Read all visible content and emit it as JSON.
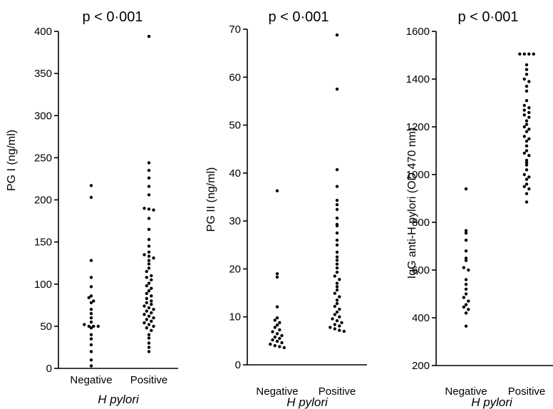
{
  "chart_data": [
    {
      "type": "scatter",
      "title": "p < 0·001",
      "ylabel": "PG I (ng/ml)",
      "xlabel": "H pylori",
      "categories": [
        "Negative",
        "Positive"
      ],
      "ylim": [
        0,
        400
      ],
      "yticks": [
        0,
        50,
        100,
        150,
        200,
        250,
        300,
        350,
        400
      ],
      "series": [
        {
          "category": "Negative",
          "values": [
            217,
            203,
            128,
            108,
            97,
            86,
            84,
            80,
            78,
            70,
            65,
            60,
            55,
            52,
            50,
            50,
            50,
            48,
            40,
            35,
            28,
            20,
            10,
            3
          ]
        },
        {
          "category": "Positive",
          "values": [
            394,
            244,
            235,
            226,
            216,
            206,
            190,
            189,
            188,
            178,
            165,
            153,
            145,
            138,
            135,
            133,
            131,
            128,
            124,
            119,
            115,
            110,
            108,
            105,
            101,
            98,
            95,
            92,
            89,
            86,
            83,
            80,
            78,
            76,
            74,
            72,
            70,
            68,
            66,
            64,
            62,
            60,
            58,
            56,
            54,
            52,
            50,
            48,
            45,
            40,
            36,
            30,
            25,
            20
          ]
        }
      ]
    },
    {
      "type": "scatter",
      "title": "p < 0·001",
      "ylabel": "PG II (ng/ml)",
      "xlabel": "H pylori",
      "categories": [
        "Negative",
        "Positive"
      ],
      "ylim": [
        0,
        70
      ],
      "yticks": [
        0,
        10,
        20,
        30,
        40,
        50,
        60,
        70
      ],
      "series": [
        {
          "category": "Negative",
          "values": [
            36.3,
            19.0,
            18.3,
            12.1,
            9.8,
            9.3,
            8.8,
            8.3,
            7.8,
            7.3,
            6.9,
            6.5,
            6.1,
            5.8,
            5.5,
            5.2,
            4.9,
            4.6,
            4.3,
            4.0,
            3.8,
            3.6
          ]
        },
        {
          "category": "Positive",
          "values": [
            68.8,
            57.5,
            40.7,
            37.2,
            34.3,
            33.4,
            32.4,
            30.6,
            29.3,
            29.0,
            27.5,
            26.0,
            25.0,
            23.5,
            22.5,
            21.8,
            21.0,
            20.2,
            19.3,
            18.5,
            17.8,
            17.0,
            16.3,
            15.6,
            14.9,
            14.2,
            13.5,
            12.8,
            12.2,
            11.6,
            11.0,
            10.5,
            10.0,
            9.6,
            9.2,
            8.8,
            8.4,
            8.1,
            7.8,
            7.5,
            7.2,
            7.0
          ]
        }
      ]
    },
    {
      "type": "scatter",
      "title": "p < 0·001",
      "ylabel": "IgG anti-H pylori (OD 470 nm)",
      "xlabel": "H pylori",
      "categories": [
        "Negative",
        "Positive"
      ],
      "ylim": [
        200,
        1600
      ],
      "yticks": [
        200,
        400,
        600,
        800,
        1000,
        1200,
        1400,
        1600
      ],
      "series": [
        {
          "category": "Negative",
          "values": [
            940,
            765,
            755,
            725,
            680,
            650,
            640,
            610,
            600,
            560,
            540,
            520,
            500,
            485,
            470,
            455,
            445,
            435,
            420,
            365
          ]
        },
        {
          "category": "Positive",
          "values": [
            1505,
            1505,
            1505,
            1505,
            1460,
            1440,
            1420,
            1400,
            1390,
            1370,
            1350,
            1310,
            1290,
            1280,
            1270,
            1260,
            1250,
            1240,
            1225,
            1210,
            1200,
            1190,
            1180,
            1160,
            1150,
            1140,
            1120,
            1100,
            1090,
            1080,
            1060,
            1050,
            1040,
            1020,
            1000,
            990,
            980,
            960,
            950,
            940,
            920,
            885
          ]
        }
      ]
    }
  ]
}
